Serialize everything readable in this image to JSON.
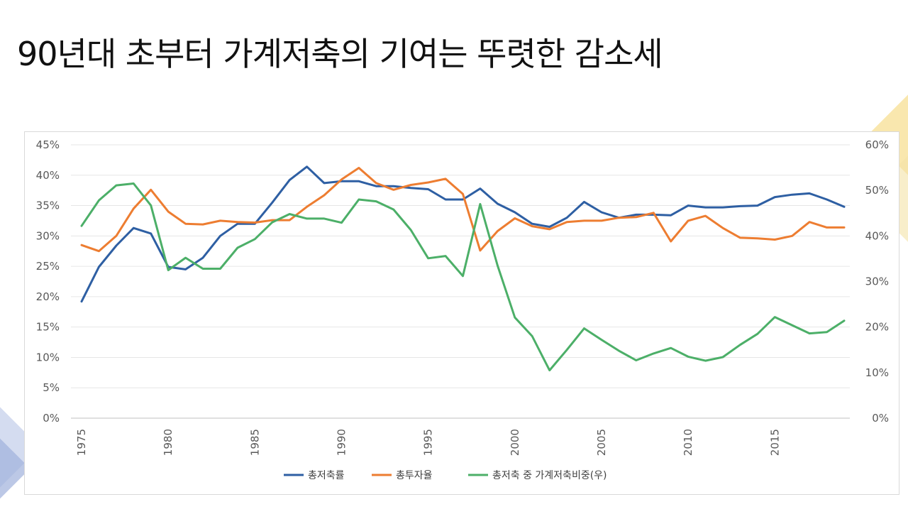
{
  "title": "90년대 초부터 가계저축의 기여는 뚜렷한 감소세",
  "chart_data": {
    "type": "line",
    "x": [
      1975,
      1976,
      1977,
      1978,
      1979,
      1980,
      1981,
      1982,
      1983,
      1984,
      1985,
      1986,
      1987,
      1988,
      1989,
      1990,
      1991,
      1992,
      1993,
      1994,
      1995,
      1996,
      1997,
      1998,
      1999,
      2000,
      2001,
      2002,
      2003,
      2004,
      2005,
      2006,
      2007,
      2008,
      2009,
      2010,
      2011,
      2012,
      2013,
      2014,
      2015,
      2016,
      2017,
      2018,
      2019
    ],
    "x_tick_labels": [
      "1975",
      "1980",
      "1985",
      "1990",
      "1995",
      "2000",
      "2005",
      "2010",
      "2015"
    ],
    "y_left": {
      "ylim": [
        0,
        45
      ],
      "tick_labels": [
        "0%",
        "5%",
        "10%",
        "15%",
        "20%",
        "25%",
        "30%",
        "35%",
        "40%",
        "45%"
      ]
    },
    "y_right": {
      "ylim": [
        0,
        60
      ],
      "tick_labels": [
        "0%",
        "10%",
        "20%",
        "30%",
        "40%",
        "50%",
        "60%"
      ]
    },
    "series": [
      {
        "name": "총저축률",
        "axis": "left",
        "color": "#2e5fa3",
        "values": [
          19.2,
          24.9,
          28.4,
          31.3,
          30.4,
          24.9,
          24.5,
          26.4,
          30.0,
          32.0,
          32.0,
          35.5,
          39.2,
          41.4,
          38.7,
          39.0,
          39.0,
          38.2,
          38.2,
          37.9,
          37.7,
          36.0,
          36.0,
          37.8,
          35.3,
          33.9,
          32.0,
          31.5,
          33.0,
          35.6,
          33.9,
          33.0,
          33.5,
          33.5,
          33.4,
          35.0,
          34.7,
          34.7,
          34.9,
          35.0,
          36.4,
          36.8,
          37.0,
          36.0,
          34.8
        ]
      },
      {
        "name": "총투자율",
        "axis": "left",
        "color": "#ed7d31",
        "values": [
          28.5,
          27.5,
          30.0,
          34.5,
          37.6,
          34.0,
          32.0,
          31.9,
          32.5,
          32.3,
          32.2,
          32.6,
          32.6,
          34.8,
          36.7,
          39.3,
          41.2,
          38.7,
          37.6,
          38.4,
          38.8,
          39.4,
          36.9,
          27.6,
          30.8,
          32.9,
          31.6,
          31.1,
          32.3,
          32.5,
          32.5,
          33.0,
          33.1,
          33.8,
          29.1,
          32.5,
          33.3,
          31.3,
          29.7,
          29.6,
          29.4,
          30.0,
          32.3,
          31.4,
          31.4
        ]
      },
      {
        "name": "총저축 중 가계저축비중(우)",
        "axis": "right",
        "color": "#4caf68",
        "values": [
          42.2,
          47.8,
          51.1,
          51.5,
          46.7,
          32.5,
          35.2,
          32.8,
          32.8,
          37.4,
          39.3,
          43.0,
          44.8,
          43.8,
          43.8,
          42.9,
          48.0,
          47.6,
          45.8,
          41.3,
          35.1,
          35.6,
          31.2,
          47.0,
          33.5,
          22.1,
          18.0,
          10.5,
          15.0,
          19.7,
          17.2,
          14.8,
          12.7,
          14.2,
          15.4,
          13.5,
          12.6,
          13.4,
          16.1,
          18.5,
          22.2,
          20.4,
          18.6,
          18.9,
          21.4
        ]
      }
    ],
    "legend_position": "bottom-center",
    "grid": true
  }
}
